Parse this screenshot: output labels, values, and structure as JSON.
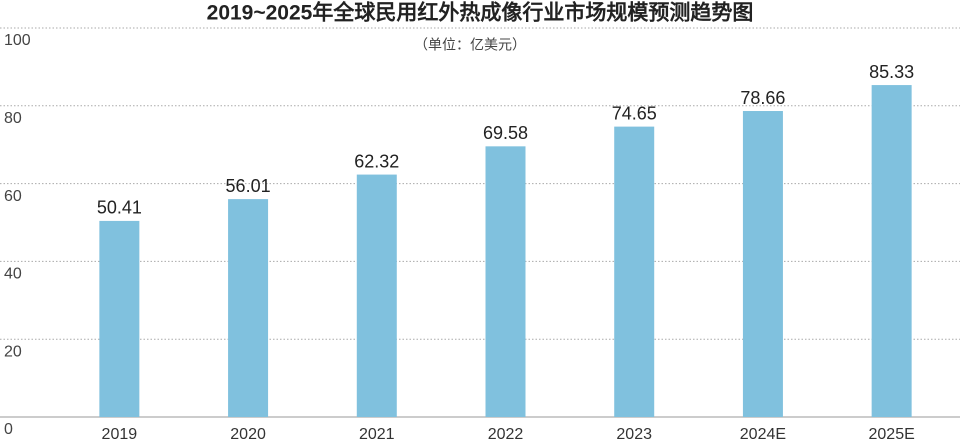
{
  "chart_data": {
    "type": "bar",
    "title": "2019~2025年全球民用红外热成像行业市场规模预测趋势图",
    "subtitle": "（单位：亿美元）",
    "categories": [
      "2019",
      "2020",
      "2021",
      "2022",
      "2023",
      "2024E",
      "2025E"
    ],
    "values": [
      50.41,
      56.01,
      62.32,
      69.58,
      74.65,
      78.66,
      85.33
    ],
    "color": "#80c1de",
    "ylim": [
      0,
      100
    ],
    "yticks": [
      0,
      20,
      40,
      60,
      80,
      100
    ],
    "grid": true
  }
}
